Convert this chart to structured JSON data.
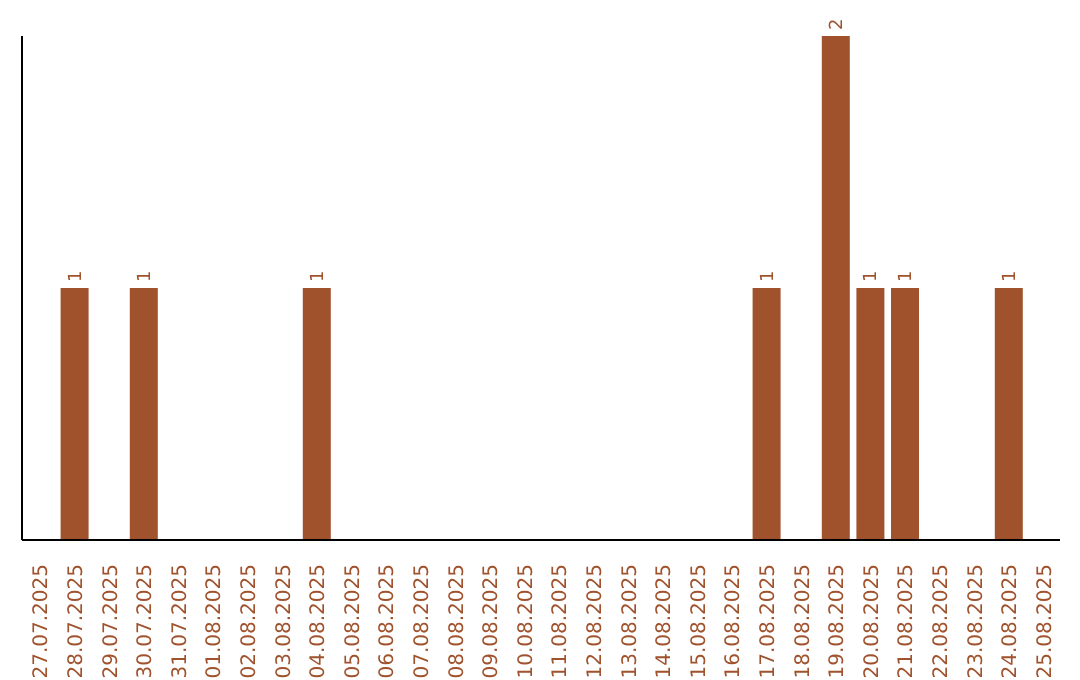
{
  "chart_data": {
    "type": "bar",
    "categories": [
      "27.07.2025",
      "28.07.2025",
      "29.07.2025",
      "30.07.2025",
      "31.07.2025",
      "01.08.2025",
      "02.08.2025",
      "03.08.2025",
      "04.08.2025",
      "05.08.2025",
      "06.08.2025",
      "07.08.2025",
      "08.08.2025",
      "09.08.2025",
      "10.08.2025",
      "11.08.2025",
      "12.08.2025",
      "13.08.2025",
      "14.08.2025",
      "15.08.2025",
      "16.08.2025",
      "17.08.2025",
      "18.08.2025",
      "19.08.2025",
      "20.08.2025",
      "21.08.2025",
      "22.08.2025",
      "23.08.2025",
      "24.08.2025",
      "25.08.2025"
    ],
    "values": [
      0,
      1,
      0,
      1,
      0,
      0,
      0,
      0,
      1,
      0,
      0,
      0,
      0,
      0,
      0,
      0,
      0,
      0,
      0,
      0,
      0,
      1,
      0,
      2,
      1,
      1,
      0,
      0,
      1,
      0
    ],
    "value_labels": [
      null,
      "1",
      null,
      "1",
      null,
      null,
      null,
      null,
      "1",
      null,
      null,
      null,
      null,
      null,
      null,
      null,
      null,
      null,
      null,
      null,
      null,
      "1",
      null,
      "2",
      "1",
      "1",
      null,
      null,
      "1",
      null
    ],
    "color": "#a0522d",
    "tick_labels": "x",
    "grid": false,
    "legend": false
  }
}
